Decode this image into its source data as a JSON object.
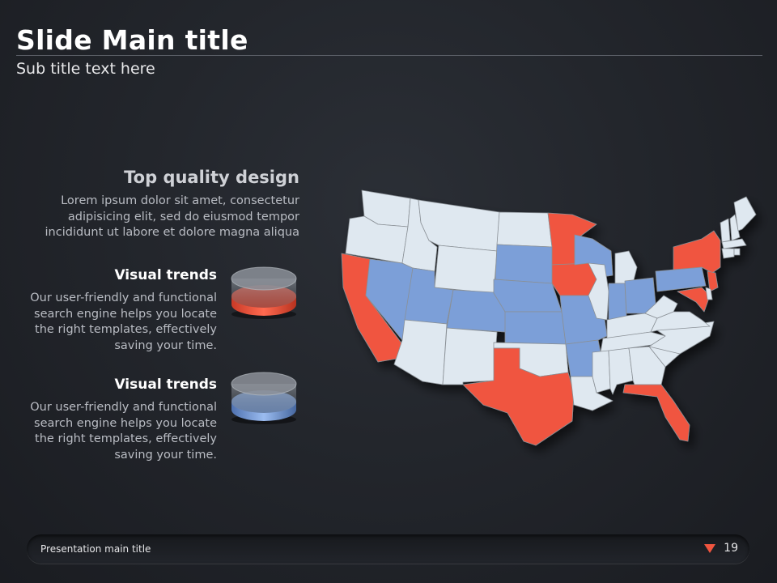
{
  "slide": {
    "title": "Slide Main title",
    "subtitle": "Sub title text here"
  },
  "intro": {
    "heading": "Top quality design",
    "body": "Lorem ipsum dolor sit amet, consectetur adipisicing elit, sed do eiusmod tempor incididunt ut labore et dolore magna aliqua"
  },
  "trends": [
    {
      "title": "Visual trends",
      "body": "Our user-friendly and functional search engine helps you locate the right templates, effectively saving your time.",
      "color": "#f0553f"
    },
    {
      "title": "Visual trends",
      "body": "Our user-friendly and functional search engine helps you locate the right templates, effectively saving your time.",
      "color": "#7b9fd8"
    }
  ],
  "map": {
    "colors": {
      "default": "#dfe8f0",
      "red": "#f0553f",
      "blue": "#7b9fd8",
      "border": "#8a9096"
    },
    "red_states": [
      "California",
      "Texas",
      "Minnesota",
      "Iowa",
      "New York",
      "Florida",
      "Maryland",
      "New Jersey"
    ],
    "blue_states": [
      "Nevada",
      "Utah",
      "Colorado",
      "South Dakota",
      "Nebraska",
      "Kansas",
      "Missouri",
      "Arkansas",
      "Wisconsin",
      "Indiana",
      "Ohio",
      "Pennsylvania"
    ]
  },
  "footer": {
    "label": "Presentation main title",
    "page_number": "19",
    "accent": "#f0553f"
  }
}
